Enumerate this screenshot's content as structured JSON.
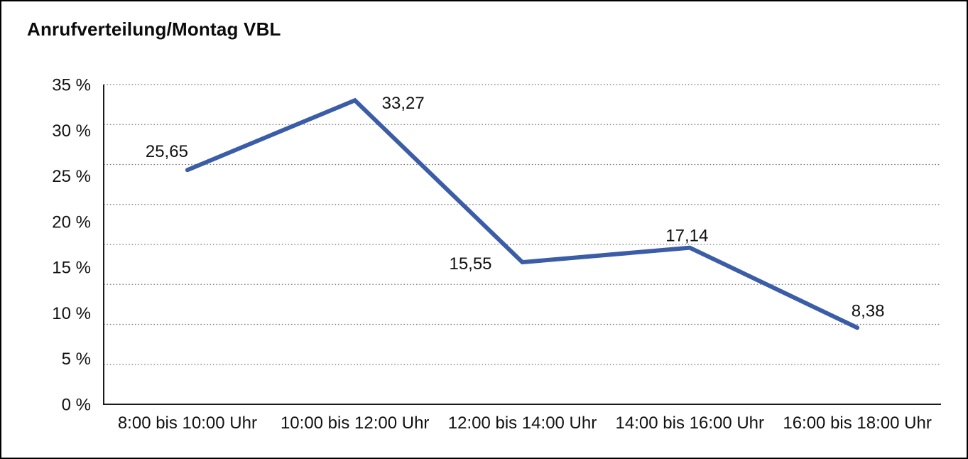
{
  "header": {
    "title": "Anrufverteilung/Montag VBL"
  },
  "chart_data": {
    "type": "line",
    "title": "Anrufverteilung/Montag VBL",
    "categories": [
      "8:00 bis 10:00 Uhr",
      "10:00 bis 12:00 Uhr",
      "12:00 bis 14:00 Uhr",
      "14:00 bis 16:00 Uhr",
      "16:00 bis 18:00 Uhr"
    ],
    "values": [
      25.65,
      33.27,
      15.55,
      17.14,
      8.38
    ],
    "value_labels": [
      "25,65",
      "33,27",
      "15,55",
      "17,14",
      "8,38"
    ],
    "xlabel": "",
    "ylabel": "",
    "ylim": [
      0,
      35
    ],
    "ytick_step": 5,
    "yticks_top_to_bottom": [
      "35 %",
      "30 %",
      "25 %",
      "20 %",
      "15 %",
      "10 %",
      "5 %",
      "0 %"
    ],
    "grid": "horizontal-dotted",
    "gridline_intervals": 8,
    "legend": "none",
    "colors": {
      "line": "#3B5CA7",
      "grid": "#777777",
      "axis": "#1a1a1a",
      "text": "#111111",
      "background": "#ffffff"
    }
  }
}
